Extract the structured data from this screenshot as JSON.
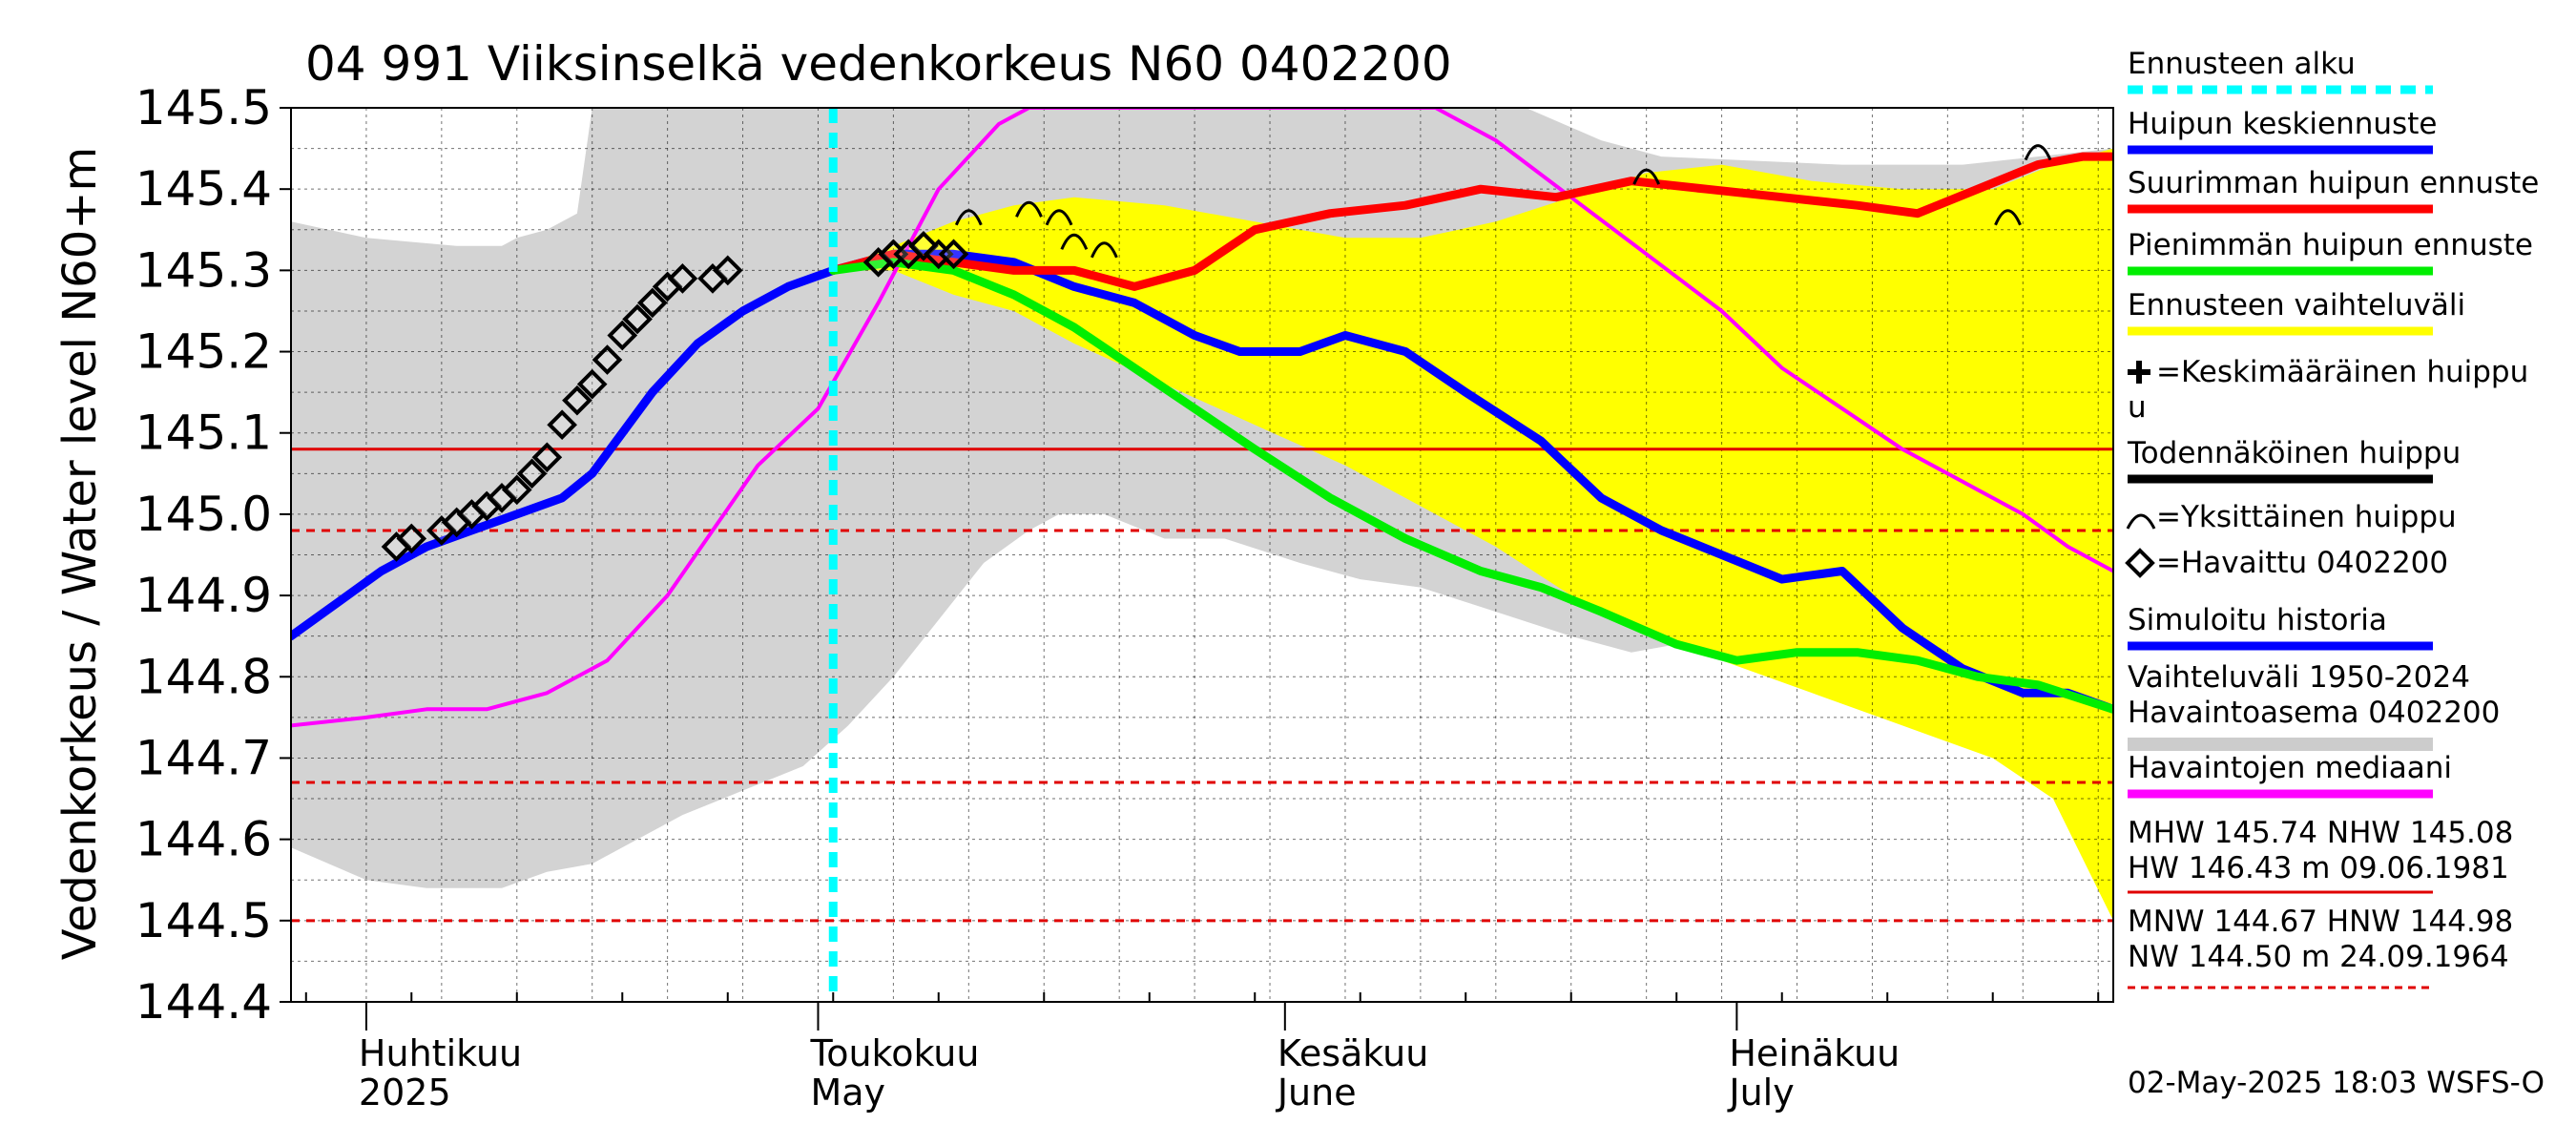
{
  "chart_data": {
    "type": "line",
    "title": "04 991 Viiksinselkä vedenkorkeus N60 0402200",
    "ylabel": "Vedenkorkeus / Water level   N60+m",
    "ylim": [
      144.4,
      145.5
    ],
    "y_ticks": [
      "144.4",
      "144.5",
      "144.6",
      "144.7",
      "144.8",
      "144.9",
      "145.0",
      "145.1",
      "145.2",
      "145.3",
      "145.4",
      "145.5"
    ],
    "xlim": [
      "2025-03-27",
      "2025-07-26"
    ],
    "month_labels": [
      {
        "date": "2025-04-01",
        "fi": "Huhtikuu",
        "en": "2025"
      },
      {
        "date": "2025-05-01",
        "fi": "Toukokuu",
        "en": "May"
      },
      {
        "date": "2025-06-01",
        "fi": "Kesäkuu",
        "en": "June"
      },
      {
        "date": "2025-07-01",
        "fi": "Heinäkuu",
        "en": "July"
      }
    ],
    "forecast_start": "2025-05-02",
    "reference_lines": [
      {
        "name": "NHW",
        "value": 145.08,
        "color": "#e00000",
        "style": "solid"
      },
      {
        "name": "HNW",
        "value": 144.98,
        "color": "#e00000",
        "style": "dashed"
      },
      {
        "name": "MNW",
        "value": 144.67,
        "color": "#e00000",
        "style": "dashed"
      },
      {
        "name": "NW",
        "value": 144.5,
        "color": "#e00000",
        "style": "dashed"
      }
    ],
    "historical_range": {
      "upper": [
        [
          "2025-03-27",
          145.36
        ],
        [
          "2025-04-01",
          145.34
        ],
        [
          "2025-04-07",
          145.33
        ],
        [
          "2025-04-10",
          145.33
        ],
        [
          "2025-04-11",
          145.34
        ],
        [
          "2025-04-13",
          145.35
        ],
        [
          "2025-04-15",
          145.37
        ],
        [
          "2025-04-16",
          145.5
        ],
        [
          "2025-06-11",
          145.5
        ],
        [
          "2025-06-17",
          145.5
        ],
        [
          "2025-06-22",
          145.46
        ],
        [
          "2025-06-26",
          145.44
        ],
        [
          "2025-07-08",
          145.43
        ],
        [
          "2025-07-16",
          145.43
        ],
        [
          "2025-07-26",
          145.45
        ]
      ],
      "lower": [
        [
          "2025-03-27",
          144.59
        ],
        [
          "2025-04-01",
          144.55
        ],
        [
          "2025-04-05",
          144.54
        ],
        [
          "2025-04-10",
          144.54
        ],
        [
          "2025-04-13",
          144.56
        ],
        [
          "2025-04-16",
          144.57
        ],
        [
          "2025-04-19",
          144.6
        ],
        [
          "2025-04-22",
          144.63
        ],
        [
          "2025-04-26",
          144.66
        ],
        [
          "2025-04-30",
          144.69
        ],
        [
          "2025-05-03",
          144.74
        ],
        [
          "2025-05-06",
          144.8
        ],
        [
          "2025-05-09",
          144.87
        ],
        [
          "2025-05-12",
          144.94
        ],
        [
          "2025-05-15",
          144.98
        ],
        [
          "2025-05-17",
          145.0
        ],
        [
          "2025-05-20",
          145.0
        ],
        [
          "2025-05-24",
          144.97
        ],
        [
          "2025-05-28",
          144.97
        ],
        [
          "2025-06-02",
          144.94
        ],
        [
          "2025-06-06",
          144.92
        ],
        [
          "2025-06-10",
          144.91
        ],
        [
          "2025-06-15",
          144.88
        ],
        [
          "2025-06-20",
          144.85
        ],
        [
          "2025-06-24",
          144.83
        ],
        [
          "2025-06-27",
          144.84
        ],
        [
          "2025-06-29",
          144.88
        ],
        [
          "2025-06-30",
          144.92
        ],
        [
          "2025-07-05",
          144.89
        ],
        [
          "2025-07-10",
          144.87
        ],
        [
          "2025-07-15",
          144.84
        ],
        [
          "2025-07-20",
          144.8
        ],
        [
          "2025-07-26",
          144.77
        ]
      ]
    },
    "forecast_range": {
      "upper": [
        [
          "2025-05-02",
          145.3
        ],
        [
          "2025-05-06",
          145.33
        ],
        [
          "2025-05-10",
          145.36
        ],
        [
          "2025-05-14",
          145.38
        ],
        [
          "2025-05-18",
          145.39
        ],
        [
          "2025-05-24",
          145.38
        ],
        [
          "2025-05-30",
          145.36
        ],
        [
          "2025-06-05",
          145.34
        ],
        [
          "2025-06-10",
          145.34
        ],
        [
          "2025-06-15",
          145.36
        ],
        [
          "2025-06-20",
          145.39
        ],
        [
          "2025-06-25",
          145.42
        ],
        [
          "2025-06-30",
          145.43
        ],
        [
          "2025-07-06",
          145.41
        ],
        [
          "2025-07-12",
          145.4
        ],
        [
          "2025-07-18",
          145.4
        ],
        [
          "2025-07-22",
          145.43
        ],
        [
          "2025-07-26",
          145.45
        ]
      ],
      "lower": [
        [
          "2025-05-02",
          145.3
        ],
        [
          "2025-05-06",
          145.3
        ],
        [
          "2025-05-10",
          145.27
        ],
        [
          "2025-05-14",
          145.25
        ],
        [
          "2025-05-18",
          145.21
        ],
        [
          "2025-05-24",
          145.16
        ],
        [
          "2025-05-30",
          145.11
        ],
        [
          "2025-06-05",
          145.06
        ],
        [
          "2025-06-10",
          145.01
        ],
        [
          "2025-06-15",
          144.96
        ],
        [
          "2025-06-20",
          144.9
        ],
        [
          "2025-06-25",
          144.86
        ],
        [
          "2025-06-30",
          144.82
        ],
        [
          "2025-07-06",
          144.78
        ],
        [
          "2025-07-12",
          144.74
        ],
        [
          "2025-07-18",
          144.7
        ],
        [
          "2025-07-22",
          144.65
        ],
        [
          "2025-07-26",
          144.5
        ]
      ]
    },
    "series": [
      {
        "name": "Havaintojen mediaani",
        "color": "#ff00ff",
        "points": [
          [
            "2025-03-27",
            144.74
          ],
          [
            "2025-04-01",
            144.75
          ],
          [
            "2025-04-05",
            144.76
          ],
          [
            "2025-04-09",
            144.76
          ],
          [
            "2025-04-13",
            144.78
          ],
          [
            "2025-04-17",
            144.82
          ],
          [
            "2025-04-21",
            144.9
          ],
          [
            "2025-04-24",
            144.98
          ],
          [
            "2025-04-27",
            145.06
          ],
          [
            "2025-05-01",
            145.13
          ],
          [
            "2025-05-05",
            145.26
          ],
          [
            "2025-05-09",
            145.4
          ],
          [
            "2025-05-13",
            145.48
          ],
          [
            "2025-05-15",
            145.5
          ],
          [
            "2025-06-11",
            145.5
          ],
          [
            "2025-06-15",
            145.46
          ],
          [
            "2025-06-20",
            145.39
          ],
          [
            "2025-06-25",
            145.32
          ],
          [
            "2025-06-30",
            145.25
          ],
          [
            "2025-07-04",
            145.18
          ],
          [
            "2025-07-08",
            145.13
          ],
          [
            "2025-07-12",
            145.08
          ],
          [
            "2025-07-16",
            145.04
          ],
          [
            "2025-07-20",
            145.0
          ],
          [
            "2025-07-23",
            144.96
          ],
          [
            "2025-07-26",
            144.93
          ]
        ]
      },
      {
        "name": "Simuloitu historia",
        "color": "#0000ff",
        "points": [
          [
            "2025-03-27",
            144.85
          ],
          [
            "2025-03-30",
            144.89
          ],
          [
            "2025-04-02",
            144.93
          ],
          [
            "2025-04-05",
            144.96
          ],
          [
            "2025-04-08",
            144.98
          ],
          [
            "2025-04-11",
            145.0
          ],
          [
            "2025-04-14",
            145.02
          ],
          [
            "2025-04-16",
            145.05
          ],
          [
            "2025-04-18",
            145.1
          ],
          [
            "2025-04-20",
            145.15
          ],
          [
            "2025-04-23",
            145.21
          ],
          [
            "2025-04-26",
            145.25
          ],
          [
            "2025-04-29",
            145.28
          ],
          [
            "2025-05-02",
            145.3
          ]
        ]
      },
      {
        "name": "Huipun keskiennuste",
        "color": "#0000ff",
        "points": [
          [
            "2025-05-02",
            145.3
          ],
          [
            "2025-05-06",
            145.32
          ],
          [
            "2025-05-10",
            145.32
          ],
          [
            "2025-05-14",
            145.31
          ],
          [
            "2025-05-18",
            145.28
          ],
          [
            "2025-05-22",
            145.26
          ],
          [
            "2025-05-26",
            145.22
          ],
          [
            "2025-05-29",
            145.2
          ],
          [
            "2025-06-02",
            145.2
          ],
          [
            "2025-06-05",
            145.22
          ],
          [
            "2025-06-09",
            145.2
          ],
          [
            "2025-06-13",
            145.15
          ],
          [
            "2025-06-18",
            145.09
          ],
          [
            "2025-06-22",
            145.02
          ],
          [
            "2025-06-26",
            144.98
          ],
          [
            "2025-06-30",
            144.95
          ],
          [
            "2025-07-04",
            144.92
          ],
          [
            "2025-07-08",
            144.93
          ],
          [
            "2025-07-12",
            144.86
          ],
          [
            "2025-07-16",
            144.81
          ],
          [
            "2025-07-20",
            144.78
          ],
          [
            "2025-07-23",
            144.78
          ],
          [
            "2025-07-26",
            144.76
          ]
        ]
      },
      {
        "name": "Suurimman huipun ennuste",
        "color": "#ff0000",
        "points": [
          [
            "2025-05-02",
            145.3
          ],
          [
            "2025-05-06",
            145.32
          ],
          [
            "2025-05-10",
            145.31
          ],
          [
            "2025-05-14",
            145.3
          ],
          [
            "2025-05-18",
            145.3
          ],
          [
            "2025-05-22",
            145.28
          ],
          [
            "2025-05-26",
            145.3
          ],
          [
            "2025-05-30",
            145.35
          ],
          [
            "2025-06-04",
            145.37
          ],
          [
            "2025-06-09",
            145.38
          ],
          [
            "2025-06-14",
            145.4
          ],
          [
            "2025-06-19",
            145.39
          ],
          [
            "2025-06-24",
            145.41
          ],
          [
            "2025-06-29",
            145.4
          ],
          [
            "2025-07-04",
            145.39
          ],
          [
            "2025-07-09",
            145.38
          ],
          [
            "2025-07-13",
            145.37
          ],
          [
            "2025-07-17",
            145.4
          ],
          [
            "2025-07-21",
            145.43
          ],
          [
            "2025-07-24",
            145.44
          ],
          [
            "2025-07-26",
            145.44
          ]
        ]
      },
      {
        "name": "Pienimmän huipun ennuste",
        "color": "#00ee00",
        "points": [
          [
            "2025-05-02",
            145.3
          ],
          [
            "2025-05-06",
            145.31
          ],
          [
            "2025-05-10",
            145.3
          ],
          [
            "2025-05-14",
            145.27
          ],
          [
            "2025-05-18",
            145.23
          ],
          [
            "2025-05-22",
            145.18
          ],
          [
            "2025-05-26",
            145.13
          ],
          [
            "2025-05-30",
            145.08
          ],
          [
            "2025-06-04",
            145.02
          ],
          [
            "2025-06-09",
            144.97
          ],
          [
            "2025-06-14",
            144.93
          ],
          [
            "2025-06-18",
            144.91
          ],
          [
            "2025-06-22",
            144.88
          ],
          [
            "2025-06-27",
            144.84
          ],
          [
            "2025-07-01",
            144.82
          ],
          [
            "2025-07-05",
            144.83
          ],
          [
            "2025-07-09",
            144.83
          ],
          [
            "2025-07-13",
            144.82
          ],
          [
            "2025-07-17",
            144.8
          ],
          [
            "2025-07-21",
            144.79
          ],
          [
            "2025-07-26",
            144.76
          ]
        ]
      }
    ],
    "single_peaks": [
      [
        "2025-05-11",
        145.37
      ],
      [
        "2025-05-15",
        145.38
      ],
      [
        "2025-05-17",
        145.37
      ],
      [
        "2025-05-18",
        145.34
      ],
      [
        "2025-05-20",
        145.33
      ],
      [
        "2025-06-25",
        145.42
      ],
      [
        "2025-07-19",
        145.37
      ],
      [
        "2025-07-21",
        145.45
      ]
    ],
    "observed": [
      [
        "2025-04-03",
        144.96
      ],
      [
        "2025-04-04",
        144.97
      ],
      [
        "2025-04-06",
        144.98
      ],
      [
        "2025-04-07",
        144.99
      ],
      [
        "2025-04-08",
        145.0
      ],
      [
        "2025-04-09",
        145.01
      ],
      [
        "2025-04-10",
        145.02
      ],
      [
        "2025-04-11",
        145.03
      ],
      [
        "2025-04-12",
        145.05
      ],
      [
        "2025-04-13",
        145.07
      ],
      [
        "2025-04-14",
        145.11
      ],
      [
        "2025-04-15",
        145.14
      ],
      [
        "2025-04-16",
        145.16
      ],
      [
        "2025-04-17",
        145.19
      ],
      [
        "2025-04-18",
        145.22
      ],
      [
        "2025-04-19",
        145.24
      ],
      [
        "2025-04-20",
        145.26
      ],
      [
        "2025-04-21",
        145.28
      ],
      [
        "2025-04-22",
        145.29
      ],
      [
        "2025-04-24",
        145.29
      ],
      [
        "2025-04-25",
        145.3
      ],
      [
        "2025-05-05",
        145.31
      ],
      [
        "2025-05-06",
        145.32
      ],
      [
        "2025-05-07",
        145.32
      ],
      [
        "2025-05-08",
        145.33
      ],
      [
        "2025-05-09",
        145.32
      ],
      [
        "2025-05-10",
        145.32
      ]
    ],
    "legend": [
      {
        "label": "Ennusteen alku",
        "color": "#00ffff",
        "kind": "dashed"
      },
      {
        "label": "Huipun keskiennuste",
        "color": "#0000ff",
        "kind": "line"
      },
      {
        "label": "Suurimman huipun ennuste",
        "color": "#ff0000",
        "kind": "line"
      },
      {
        "label": "Pienimmän huipun ennuste",
        "color": "#00ee00",
        "kind": "line"
      },
      {
        "label": "Ennusteen vaihteluväli",
        "color": "#ffff00",
        "kind": "line"
      },
      {
        "label": "=Keskimääräinen huippu",
        "label2": "u",
        "color": "#000000",
        "kind": "plus"
      },
      {
        "label": "Todennäköinen huippu",
        "color": "#000000",
        "kind": "line"
      },
      {
        "label": "=Yksittäinen huippu",
        "color": "#000000",
        "kind": "arc"
      },
      {
        "label": "=Havaittu 0402200",
        "color": "#000000",
        "kind": "diamond"
      },
      {
        "label": "Simuloitu historia",
        "color": "#0000ff",
        "kind": "line"
      },
      {
        "label": "Vaihteluväli 1950-2024",
        "label2": " Havaintoasema 0402200",
        "color": "#cccccc",
        "kind": "line"
      },
      {
        "label": "Havaintojen mediaani",
        "color": "#ff00ff",
        "kind": "line"
      }
    ],
    "stats": {
      "high_line1": "MHW 145.74 NHW 145.08",
      "high_line2": "HW 146.43 m 09.06.1981",
      "low_line1": "MNW 144.67 HNW 144.98",
      "low_line2": "NW 144.50 m 24.09.1964"
    },
    "timestamp": "02-May-2025 18:03 WSFS-O"
  }
}
